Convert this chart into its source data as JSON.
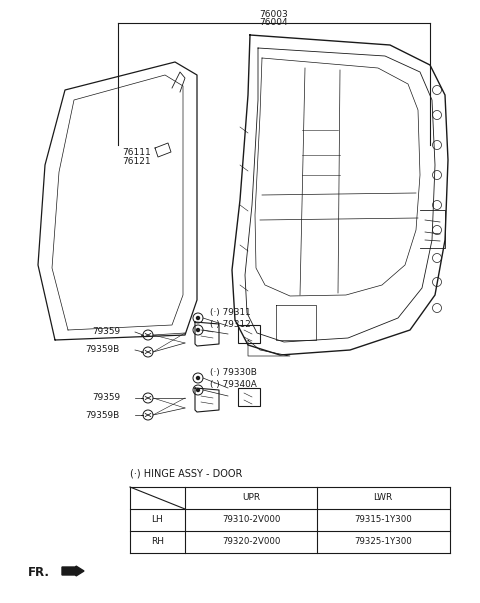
{
  "bg_color": "#ffffff",
  "line_color": "#1a1a1a",
  "label_color": "#1a1a1a",
  "table_title": "(·) HINGE ASSY - DOOR",
  "col_headers": [
    "UPR",
    "LWR"
  ],
  "row_headers": [
    "LH",
    "RH"
  ],
  "cells": [
    [
      "79310-2V000",
      "79315-1Y300"
    ],
    [
      "79320-2V000",
      "79325-1Y300"
    ]
  ],
  "fr_label": "FR."
}
